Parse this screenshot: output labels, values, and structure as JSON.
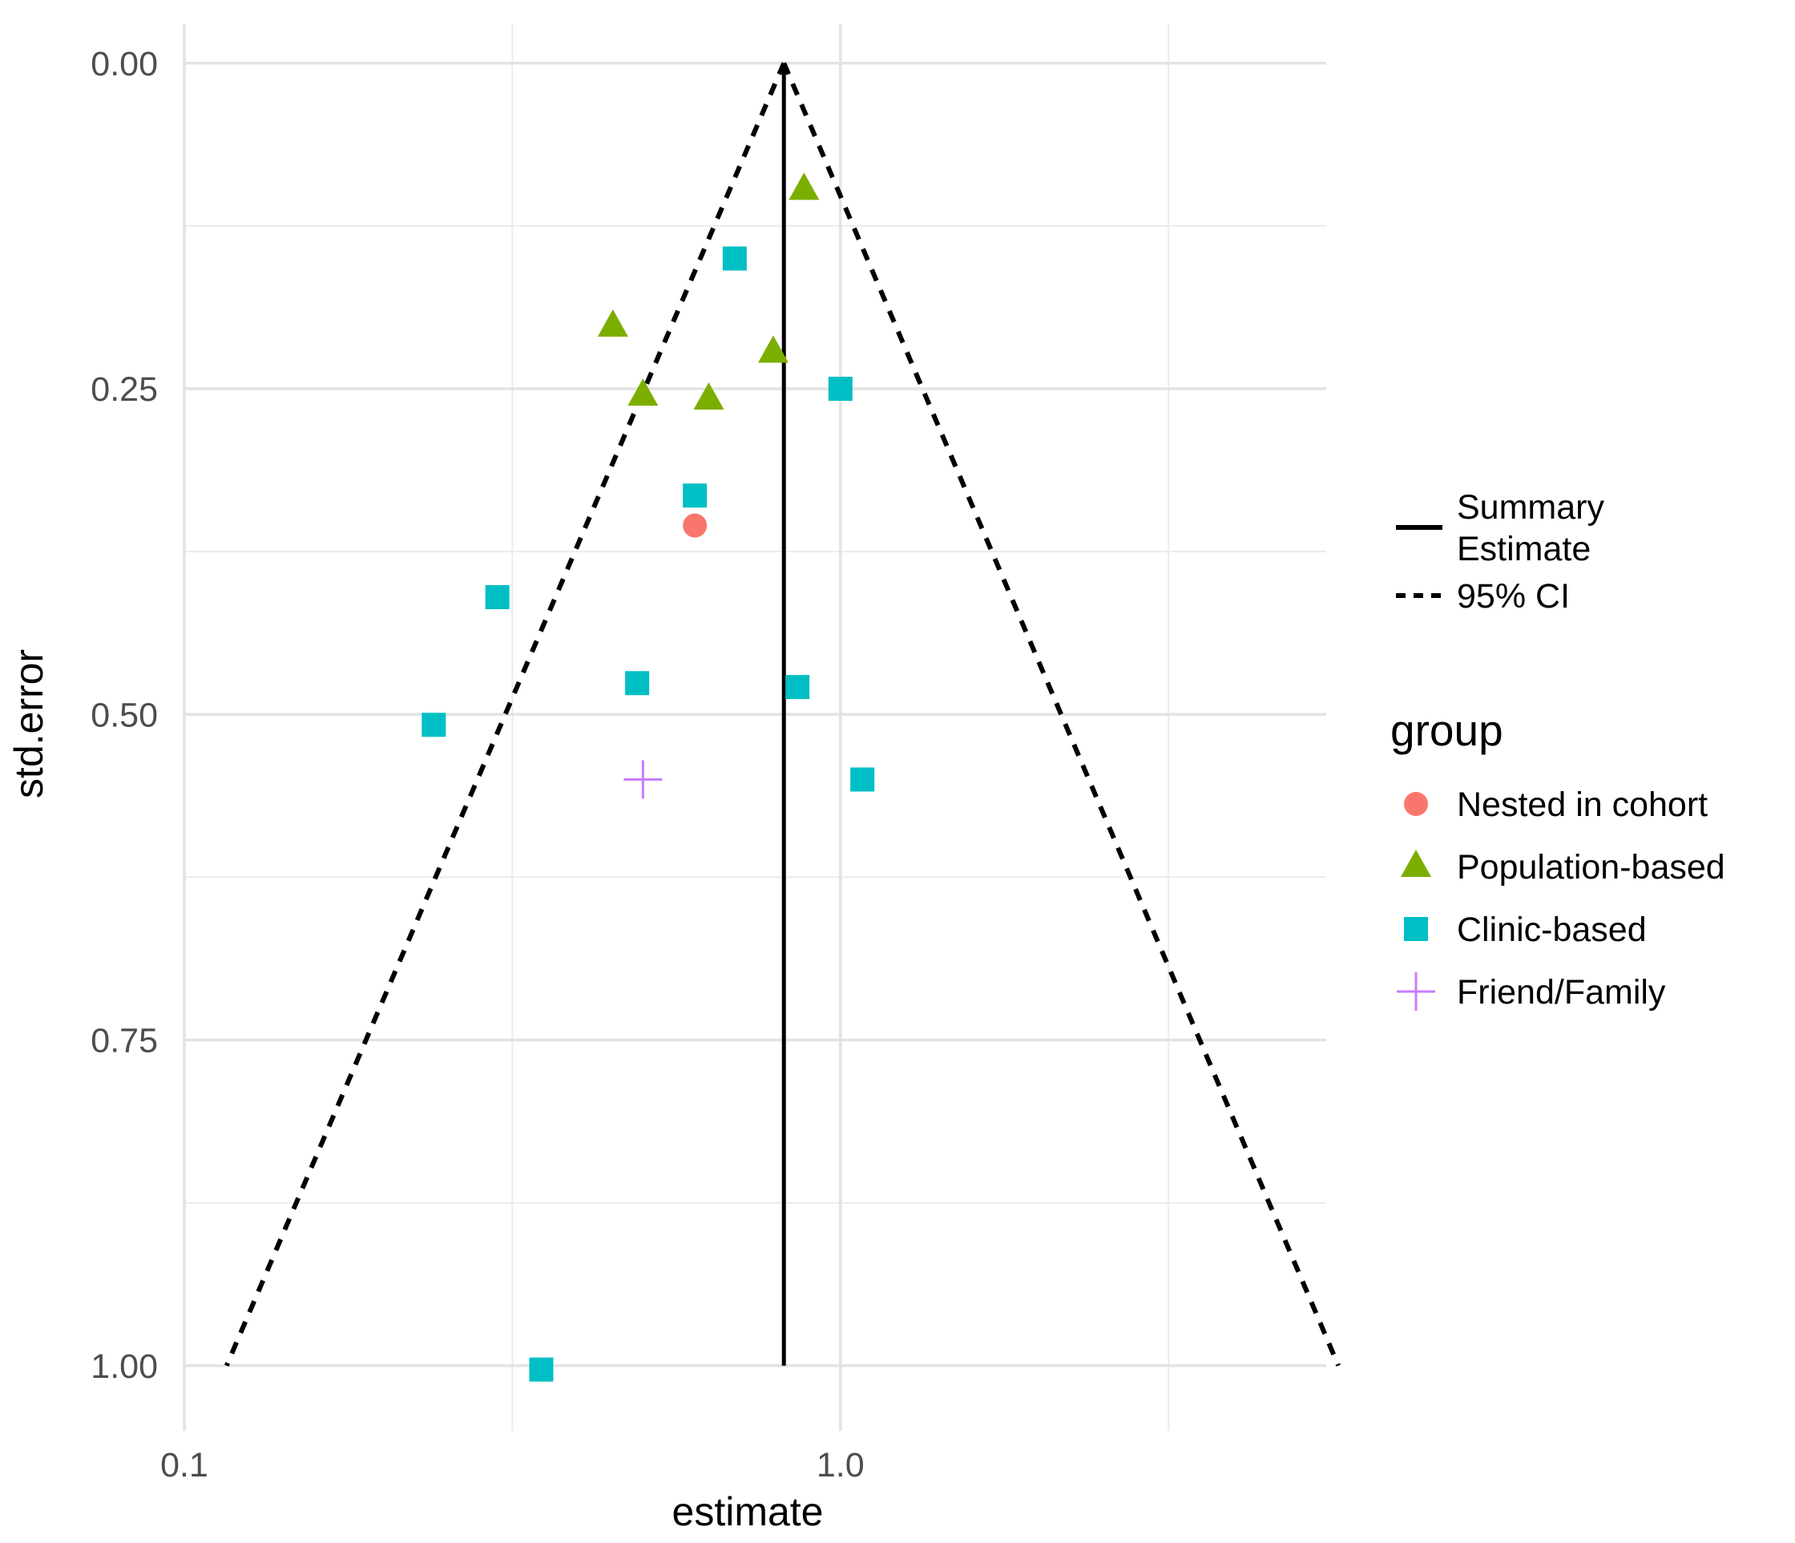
{
  "chart_data": {
    "type": "scatter",
    "subtype": "funnel-plot",
    "title": "",
    "xlabel": "estimate",
    "ylabel": "std.error",
    "x_scale": "log10",
    "y_reversed": true,
    "xlim": [
      0.1,
      5.5
    ],
    "ylim": [
      1.05,
      -0.03
    ],
    "x_tick_labels": [
      "0.1",
      "1.0"
    ],
    "x_major_ticks": [
      0.1,
      1.0
    ],
    "x_minor_gridlines": [
      0.3162,
      3.1623
    ],
    "y_tick_labels": [
      "0.00",
      "0.25",
      "0.50",
      "0.75",
      "1.00"
    ],
    "y_major_ticks": [
      0.0,
      0.25,
      0.5,
      0.75,
      1.0
    ],
    "y_minor_gridlines": [
      0.125,
      0.375,
      0.625,
      0.875
    ],
    "grid": true,
    "legend_position": "right",
    "summary_estimate": 0.82,
    "ci_se_max": 1.0,
    "ci_lower_at_se_max": 0.116,
    "ci_upper_at_se_max": 5.74,
    "line_legend": [
      {
        "label": "Summary\nEstimate",
        "linetype": "solid"
      },
      {
        "label": "95% CI",
        "linetype": "dashed"
      }
    ],
    "legend_title": "group",
    "groups": [
      {
        "name": "Nested in cohort",
        "shape": "circle",
        "color": "#F8766D"
      },
      {
        "name": "Population-based",
        "shape": "triangle",
        "color": "#7CAE00"
      },
      {
        "name": "Clinic-based",
        "shape": "square",
        "color": "#00BFC4"
      },
      {
        "name": "Friend/Family",
        "shape": "plus",
        "color": "#C77CFF"
      }
    ],
    "points": [
      {
        "group": "Nested in cohort",
        "x": 0.6,
        "y": 0.355
      },
      {
        "group": "Population-based",
        "x": 0.88,
        "y": 0.097
      },
      {
        "group": "Population-based",
        "x": 0.45,
        "y": 0.202
      },
      {
        "group": "Population-based",
        "x": 0.79,
        "y": 0.222
      },
      {
        "group": "Population-based",
        "x": 0.5,
        "y": 0.255
      },
      {
        "group": "Population-based",
        "x": 0.63,
        "y": 0.258
      },
      {
        "group": "Clinic-based",
        "x": 0.69,
        "y": 0.15
      },
      {
        "group": "Clinic-based",
        "x": 1.0,
        "y": 0.25
      },
      {
        "group": "Clinic-based",
        "x": 0.6,
        "y": 0.332
      },
      {
        "group": "Clinic-based",
        "x": 0.3,
        "y": 0.41
      },
      {
        "group": "Clinic-based",
        "x": 0.49,
        "y": 0.476
      },
      {
        "group": "Clinic-based",
        "x": 0.86,
        "y": 0.479
      },
      {
        "group": "Clinic-based",
        "x": 0.24,
        "y": 0.508
      },
      {
        "group": "Clinic-based",
        "x": 1.08,
        "y": 0.55
      },
      {
        "group": "Clinic-based",
        "x": 0.35,
        "y": 1.003
      },
      {
        "group": "Friend/Family",
        "x": 0.5,
        "y": 0.55
      }
    ]
  }
}
